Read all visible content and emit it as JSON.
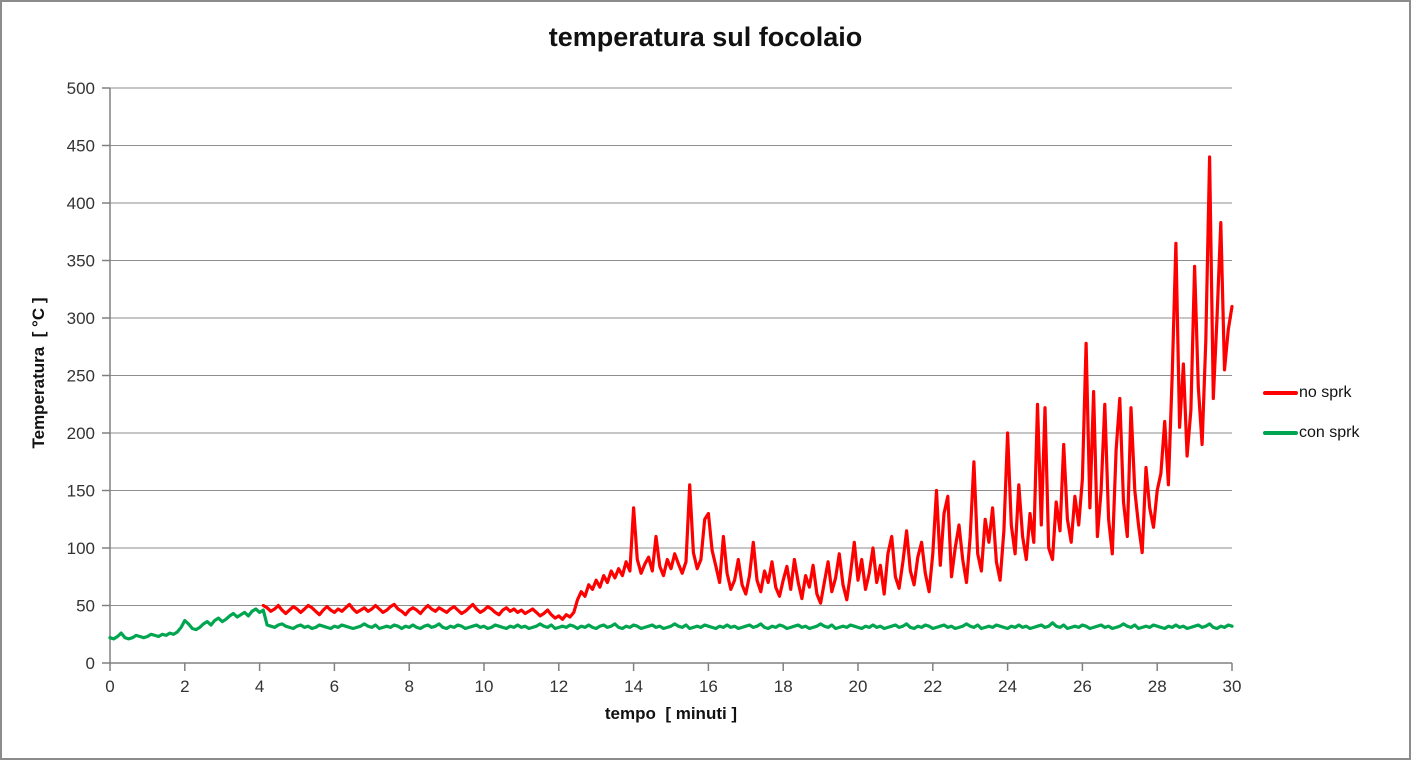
{
  "chart_data": {
    "type": "line",
    "title": "temperatura sul focolaio",
    "xlabel": "tempo  [ minuti ]",
    "ylabel": "Temperatura  [ °C ]",
    "xlim": [
      0,
      30
    ],
    "ylim": [
      0,
      500
    ],
    "x_ticks": [
      0,
      2,
      4,
      6,
      8,
      10,
      12,
      14,
      16,
      18,
      20,
      22,
      24,
      26,
      28,
      30
    ],
    "y_ticks": [
      0,
      50,
      100,
      150,
      200,
      250,
      300,
      350,
      400,
      450,
      500
    ],
    "grid": "horizontal",
    "legend_position": "right",
    "grid_color": "#8E8E8E",
    "axis_color": "#808080",
    "series": [
      {
        "name": "no sprk",
        "color": "#FF0000",
        "t0": 4.1,
        "dt": 0.1,
        "values": [
          50,
          48,
          45,
          47,
          50,
          46,
          43,
          46,
          49,
          47,
          44,
          47,
          50,
          48,
          45,
          42,
          46,
          49,
          46,
          44,
          47,
          45,
          48,
          51,
          47,
          44,
          46,
          48,
          45,
          47,
          50,
          47,
          44,
          46,
          49,
          51,
          47,
          45,
          42,
          46,
          48,
          46,
          43,
          47,
          50,
          47,
          45,
          48,
          46,
          44,
          47,
          49,
          46,
          43,
          45,
          48,
          51,
          47,
          44,
          46,
          49,
          47,
          44,
          42,
          46,
          48,
          45,
          47,
          44,
          46,
          43,
          45,
          47,
          44,
          41,
          43,
          46,
          42,
          39,
          41,
          38,
          42,
          40,
          44,
          55,
          62,
          58,
          68,
          64,
          72,
          66,
          76,
          70,
          80,
          74,
          82,
          76,
          88,
          80,
          135,
          90,
          78,
          86,
          92,
          80,
          110,
          84,
          76,
          90,
          82,
          95,
          86,
          78,
          88,
          155,
          96,
          82,
          90,
          125,
          130,
          98,
          84,
          70,
          110,
          78,
          64,
          72,
          90,
          68,
          60,
          76,
          105,
          72,
          62,
          80,
          70,
          88,
          66,
          58,
          72,
          84,
          64,
          90,
          70,
          56,
          76,
          66,
          85,
          60,
          52,
          70,
          88,
          62,
          74,
          95,
          68,
          55,
          78,
          105,
          72,
          90,
          64,
          78,
          100,
          70,
          85,
          60,
          95,
          110,
          75,
          65,
          88,
          115,
          80,
          68,
          92,
          105,
          78,
          62,
          95,
          150,
          85,
          130,
          145,
          75,
          100,
          120,
          90,
          70,
          110,
          175,
          95,
          80,
          125,
          105,
          135,
          88,
          72,
          115,
          200,
          120,
          95,
          155,
          110,
          90,
          130,
          105,
          225,
          120,
          222,
          100,
          90,
          140,
          115,
          190,
          125,
          105,
          145,
          120,
          160,
          278,
          135,
          236,
          110,
          150,
          225,
          125,
          95,
          185,
          230,
          140,
          110,
          222,
          150,
          120,
          96,
          170,
          135,
          118,
          150,
          165,
          210,
          155,
          250,
          365,
          205,
          260,
          180,
          220,
          345,
          240,
          190,
          280,
          440,
          230,
          300,
          383,
          255,
          290,
          310
        ]
      },
      {
        "name": "con sprk",
        "color": "#00A550",
        "t0": 0,
        "dt": 0.1,
        "values": [
          22,
          21,
          23,
          26,
          22,
          21,
          22,
          24,
          23,
          22,
          23,
          25,
          24,
          23,
          25,
          24,
          26,
          25,
          27,
          31,
          37,
          34,
          30,
          29,
          31,
          34,
          36,
          33,
          37,
          39,
          36,
          38,
          41,
          43,
          40,
          42,
          44,
          41,
          45,
          47,
          44,
          46,
          33,
          32,
          31,
          33,
          34,
          32,
          31,
          30,
          32,
          33,
          31,
          32,
          30,
          31,
          33,
          32,
          31,
          30,
          32,
          31,
          33,
          32,
          31,
          30,
          31,
          32,
          34,
          32,
          31,
          33,
          30,
          31,
          32,
          31,
          33,
          32,
          30,
          32,
          31,
          33,
          31,
          30,
          32,
          33,
          31,
          32,
          34,
          31,
          30,
          32,
          31,
          33,
          32,
          30,
          31,
          32,
          33,
          31,
          32,
          30,
          31,
          33,
          32,
          31,
          30,
          32,
          31,
          33,
          31,
          32,
          30,
          31,
          32,
          34,
          32,
          31,
          33,
          30,
          31,
          32,
          31,
          33,
          32,
          30,
          32,
          31,
          33,
          31,
          30,
          32,
          33,
          31,
          32,
          34,
          31,
          30,
          32,
          31,
          33,
          32,
          30,
          31,
          32,
          33,
          31,
          32,
          30,
          31,
          32,
          34,
          32,
          31,
          33,
          30,
          31,
          32,
          31,
          33,
          32,
          31,
          30,
          32,
          31,
          33,
          31,
          32,
          30,
          31,
          32,
          33,
          31,
          32,
          34,
          31,
          30,
          32,
          31,
          33,
          32,
          30,
          31,
          32,
          33,
          31,
          32,
          30,
          31,
          32,
          34,
          32,
          31,
          33,
          30,
          31,
          32,
          31,
          33,
          32,
          31,
          30,
          32,
          31,
          33,
          31,
          32,
          30,
          31,
          32,
          33,
          31,
          32,
          34,
          31,
          30,
          32,
          31,
          33,
          32,
          30,
          31,
          32,
          33,
          31,
          32,
          30,
          31,
          32,
          34,
          32,
          31,
          33,
          30,
          31,
          32,
          31,
          33,
          32,
          31,
          30,
          32,
          31,
          33,
          31,
          32,
          30,
          31,
          32,
          33,
          31,
          32,
          35,
          32,
          31,
          33,
          30,
          31,
          32,
          31,
          33,
          32,
          30,
          31,
          32,
          33,
          31,
          32,
          30,
          31,
          32,
          34,
          32,
          31,
          33,
          30,
          31,
          32,
          31,
          33,
          32,
          31,
          30,
          32,
          31,
          33,
          31,
          32,
          30,
          31,
          32,
          33,
          31,
          32,
          34,
          31,
          30,
          32,
          31,
          33,
          32
        ]
      }
    ]
  }
}
